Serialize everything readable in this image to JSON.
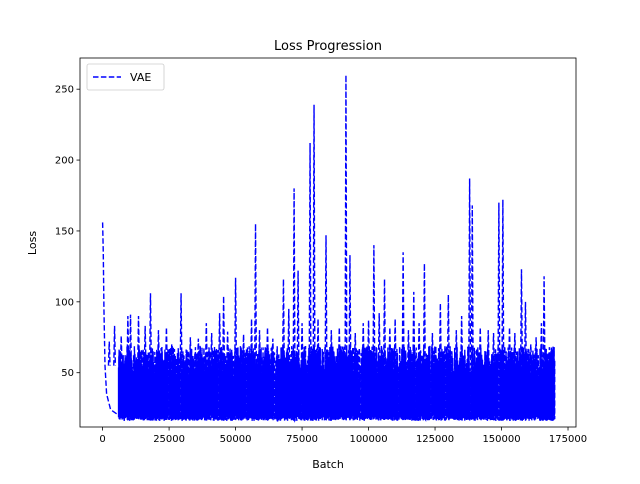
{
  "chart_data": {
    "type": "line",
    "title": "Loss Progression",
    "xlabel": "Batch",
    "ylabel": "Loss",
    "xlim": [
      -8500,
      178000
    ],
    "ylim": [
      11.7,
      272
    ],
    "xticks": [
      0,
      25000,
      50000,
      75000,
      100000,
      125000,
      150000,
      175000
    ],
    "xtick_labels": [
      "0",
      "25000",
      "50000",
      "75000",
      "100000",
      "125000",
      "150000",
      "175000"
    ],
    "yticks": [
      50,
      100,
      150,
      200,
      250
    ],
    "ytick_labels": [
      "50",
      "100",
      "150",
      "200",
      "250"
    ],
    "grid": false,
    "legend_position": "upper-left",
    "series": [
      {
        "name": "VAE",
        "color": "#0000ff",
        "line_style": "dashed",
        "x_range": [
          0,
          170000
        ],
        "noise_band": {
          "lower": 16,
          "upper_dense": 55,
          "typical_upper": 65
        },
        "start_curve": [
          {
            "x": 0,
            "y": 156
          },
          {
            "x": 250,
            "y": 135
          },
          {
            "x": 500,
            "y": 95
          },
          {
            "x": 900,
            "y": 55
          },
          {
            "x": 1500,
            "y": 35
          },
          {
            "x": 3000,
            "y": 24
          },
          {
            "x": 6000,
            "y": 20
          }
        ],
        "spikes": [
          {
            "x": 2500,
            "y": 72
          },
          {
            "x": 4500,
            "y": 83
          },
          {
            "x": 7000,
            "y": 76
          },
          {
            "x": 9500,
            "y": 90
          },
          {
            "x": 10500,
            "y": 91
          },
          {
            "x": 13500,
            "y": 90
          },
          {
            "x": 16000,
            "y": 83
          },
          {
            "x": 18000,
            "y": 106
          },
          {
            "x": 21000,
            "y": 80
          },
          {
            "x": 24000,
            "y": 82
          },
          {
            "x": 26000,
            "y": 70
          },
          {
            "x": 29500,
            "y": 106
          },
          {
            "x": 33000,
            "y": 75
          },
          {
            "x": 36000,
            "y": 74
          },
          {
            "x": 39000,
            "y": 85
          },
          {
            "x": 41000,
            "y": 78
          },
          {
            "x": 44000,
            "y": 92
          },
          {
            "x": 45500,
            "y": 104
          },
          {
            "x": 47000,
            "y": 79
          },
          {
            "x": 50000,
            "y": 117
          },
          {
            "x": 53000,
            "y": 77
          },
          {
            "x": 56000,
            "y": 88
          },
          {
            "x": 57500,
            "y": 155
          },
          {
            "x": 59000,
            "y": 80
          },
          {
            "x": 62000,
            "y": 82
          },
          {
            "x": 64000,
            "y": 74
          },
          {
            "x": 68000,
            "y": 116
          },
          {
            "x": 70000,
            "y": 95
          },
          {
            "x": 72000,
            "y": 180
          },
          {
            "x": 73500,
            "y": 122
          },
          {
            "x": 75000,
            "y": 85
          },
          {
            "x": 78000,
            "y": 212
          },
          {
            "x": 79500,
            "y": 239
          },
          {
            "x": 81000,
            "y": 88
          },
          {
            "x": 84000,
            "y": 147
          },
          {
            "x": 86000,
            "y": 80
          },
          {
            "x": 89000,
            "y": 82
          },
          {
            "x": 91500,
            "y": 260
          },
          {
            "x": 93000,
            "y": 133
          },
          {
            "x": 95000,
            "y": 78
          },
          {
            "x": 98000,
            "y": 85
          },
          {
            "x": 100000,
            "y": 87
          },
          {
            "x": 102000,
            "y": 140
          },
          {
            "x": 104000,
            "y": 92
          },
          {
            "x": 106000,
            "y": 116
          },
          {
            "x": 108000,
            "y": 82
          },
          {
            "x": 110000,
            "y": 88
          },
          {
            "x": 113000,
            "y": 135
          },
          {
            "x": 115000,
            "y": 80
          },
          {
            "x": 117000,
            "y": 107
          },
          {
            "x": 119000,
            "y": 85
          },
          {
            "x": 121000,
            "y": 127
          },
          {
            "x": 124000,
            "y": 78
          },
          {
            "x": 127000,
            "y": 99
          },
          {
            "x": 130000,
            "y": 105
          },
          {
            "x": 133000,
            "y": 80
          },
          {
            "x": 135000,
            "y": 90
          },
          {
            "x": 138000,
            "y": 187
          },
          {
            "x": 139000,
            "y": 168
          },
          {
            "x": 142000,
            "y": 82
          },
          {
            "x": 145000,
            "y": 80
          },
          {
            "x": 147000,
            "y": 78
          },
          {
            "x": 149000,
            "y": 170
          },
          {
            "x": 150500,
            "y": 172
          },
          {
            "x": 153000,
            "y": 82
          },
          {
            "x": 155000,
            "y": 78
          },
          {
            "x": 157500,
            "y": 123
          },
          {
            "x": 159000,
            "y": 100
          },
          {
            "x": 161000,
            "y": 70
          },
          {
            "x": 163000,
            "y": 75
          },
          {
            "x": 165000,
            "y": 85
          },
          {
            "x": 166000,
            "y": 118
          },
          {
            "x": 168000,
            "y": 68
          },
          {
            "x": 169500,
            "y": 62
          }
        ]
      }
    ]
  }
}
